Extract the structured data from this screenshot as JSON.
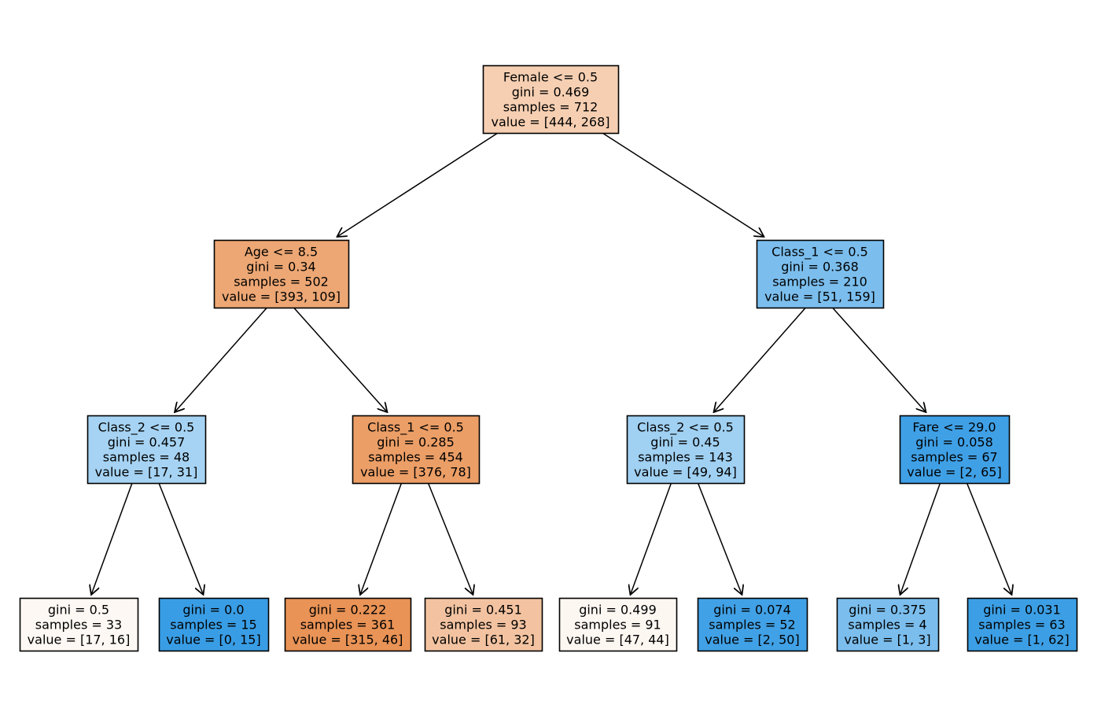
{
  "diagram": {
    "type": "decision-tree",
    "class_colors": {
      "class_0": "#e58139",
      "class_1": "#399de5"
    },
    "nodes": [
      {
        "id": "root",
        "lines": [
          "Female <= 0.5",
          "gini = 0.469",
          "samples = 712",
          "value = [444, 268]"
        ],
        "fill": "#f6cfb2"
      },
      {
        "id": "n1",
        "parent": "root",
        "lines": [
          "Age <= 8.5",
          "gini = 0.34",
          "samples = 502",
          "value = [393, 109]"
        ],
        "fill": "#eda774"
      },
      {
        "id": "n2",
        "parent": "root",
        "lines": [
          "Class_1 <= 0.5",
          "gini = 0.368",
          "samples = 210",
          "value = [51, 159]"
        ],
        "fill": "#7bbeee"
      },
      {
        "id": "n3",
        "parent": "n1",
        "lines": [
          "Class_2 <= 0.5",
          "gini = 0.457",
          "samples = 48",
          "value = [17, 31]"
        ],
        "fill": "#a6d3f3"
      },
      {
        "id": "n4",
        "parent": "n1",
        "lines": [
          "Class_1 <= 0.5",
          "gini = 0.285",
          "samples = 454",
          "value = [376, 78]"
        ],
        "fill": "#eb9e66"
      },
      {
        "id": "n5",
        "parent": "n2",
        "lines": [
          "Class_2 <= 0.5",
          "gini = 0.45",
          "samples = 143",
          "value = [49, 94]"
        ],
        "fill": "#a0d0f2"
      },
      {
        "id": "n6",
        "parent": "n2",
        "lines": [
          "Fare <= 29.0",
          "gini = 0.058",
          "samples = 67",
          "value = [2, 65]"
        ],
        "fill": "#3fa0e6"
      },
      {
        "id": "l1",
        "parent": "n3",
        "lines": [
          "gini = 0.5",
          "samples = 33",
          "value = [17, 16]"
        ],
        "fill": "#fdf8f3"
      },
      {
        "id": "l2",
        "parent": "n3",
        "lines": [
          "gini = 0.0",
          "samples = 15",
          "value = [0, 15]"
        ],
        "fill": "#399de5"
      },
      {
        "id": "l3",
        "parent": "n4",
        "lines": [
          "gini = 0.222",
          "samples = 361",
          "value = [315, 46]"
        ],
        "fill": "#e99356"
      },
      {
        "id": "l4",
        "parent": "n4",
        "lines": [
          "gini = 0.451",
          "samples = 93",
          "value = [61, 32]"
        ],
        "fill": "#f3c3a1"
      },
      {
        "id": "l5",
        "parent": "n5",
        "lines": [
          "gini = 0.499",
          "samples = 91",
          "value = [47, 44]"
        ],
        "fill": "#fdf7f2"
      },
      {
        "id": "l6",
        "parent": "n5",
        "lines": [
          "gini = 0.074",
          "samples = 52",
          "value = [2, 50]"
        ],
        "fill": "#41a1e6"
      },
      {
        "id": "l7",
        "parent": "n6",
        "lines": [
          "gini = 0.375",
          "samples = 4",
          "value = [1, 3]"
        ],
        "fill": "#7bbeee"
      },
      {
        "id": "l8",
        "parent": "n6",
        "lines": [
          "gini = 0.031",
          "samples = 63",
          "value = [1, 62]"
        ],
        "fill": "#3c9fe5"
      }
    ]
  }
}
